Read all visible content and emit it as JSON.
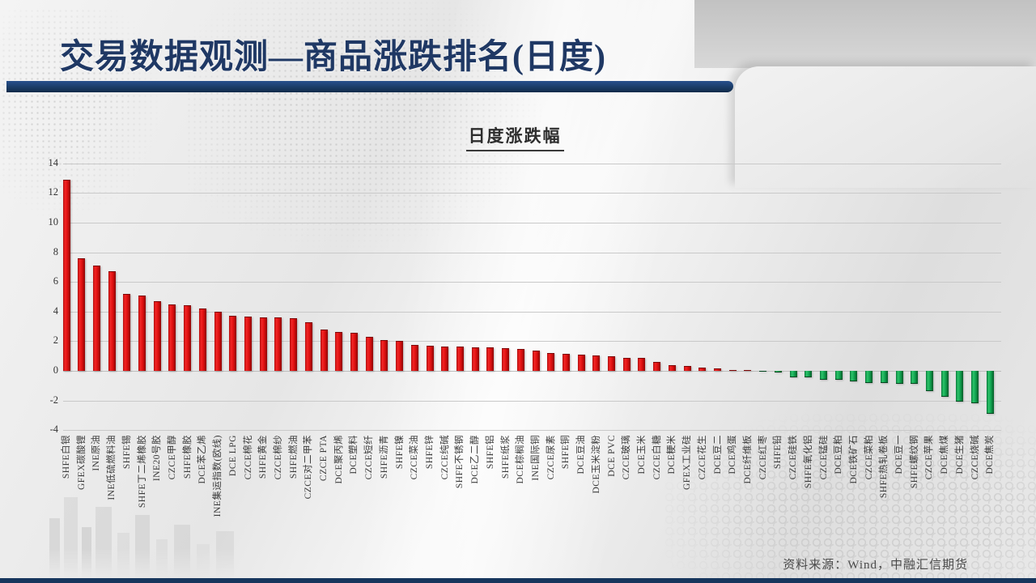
{
  "slide": {
    "title": "交易数据观测—商品涨跌排名(日度)",
    "source_note": "资料来源：Wind，中融汇信期货",
    "accent_color": "#17365d",
    "title_color": "#1f3864"
  },
  "chart_data": {
    "type": "bar",
    "title": "日度涨跌幅",
    "xlabel": "",
    "ylabel": "",
    "ylim": [
      -4,
      14
    ],
    "ytick_step": 2,
    "grid": true,
    "legend": "none",
    "positive_color": "#df1010",
    "negative_color": "#12a551",
    "categories": [
      "SHFE白银",
      "GFEX碳酸锂",
      "INE原油",
      "INE低硫燃料油",
      "SHFE锡",
      "SHFE丁二烯橡胶",
      "INE20号胶",
      "CZCE甲醇",
      "SHFE橡胶",
      "DCE苯乙烯",
      "INE集运指数(欧线)",
      "DCE LPG",
      "CZCE棉花",
      "SHFE黄金",
      "CZCE棉纱",
      "SHFE燃油",
      "CZCE对二甲苯",
      "CZCE PTA",
      "DCE聚丙烯",
      "DCE塑料",
      "CZCE短纤",
      "SHFE沥青",
      "SHFE镍",
      "CZCE菜油",
      "SHFE锌",
      "CZCE纯碱",
      "SHFE不锈钢",
      "DCE乙二醇",
      "SHFE铝",
      "SHFE纸浆",
      "DCE棕榈油",
      "INE国际铜",
      "CZCE尿素",
      "SHFE铜",
      "DCE豆油",
      "DCE玉米淀粉",
      "DCE PVC",
      "CZCE玻璃",
      "DCE玉米",
      "CZCE白糖",
      "DCE粳米",
      "GFEX工业硅",
      "CZCE花生",
      "DCE豆二",
      "DCE鸡蛋",
      "DCE纤维板",
      "CZCE红枣",
      "SHFE铅",
      "CZCE硅铁",
      "SHFE氧化铝",
      "CZCE锰硅",
      "DCE豆粕",
      "DCE铁矿石",
      "CZCE菜粕",
      "SHFE热轧卷板",
      "DCE豆一",
      "SHFE螺纹钢",
      "CZCE苹果",
      "DCE焦煤",
      "DCE生猪",
      "CZCE烧碱",
      "DCE焦炭"
    ],
    "values": [
      12.9,
      7.6,
      7.1,
      6.7,
      5.2,
      5.1,
      4.7,
      4.5,
      4.4,
      4.2,
      4.0,
      3.7,
      3.65,
      3.6,
      3.6,
      3.55,
      3.3,
      2.8,
      2.6,
      2.55,
      2.3,
      2.05,
      2.0,
      1.75,
      1.7,
      1.65,
      1.62,
      1.6,
      1.58,
      1.55,
      1.5,
      1.35,
      1.2,
      1.15,
      1.1,
      1.05,
      1.0,
      0.9,
      0.85,
      0.6,
      0.4,
      0.35,
      0.2,
      0.15,
      0.08,
      0.02,
      -0.02,
      -0.12,
      -0.42,
      -0.45,
      -0.58,
      -0.6,
      -0.7,
      -0.8,
      -0.82,
      -0.85,
      -0.88,
      -1.35,
      -1.75,
      -2.05,
      -2.2,
      -2.9
    ]
  }
}
